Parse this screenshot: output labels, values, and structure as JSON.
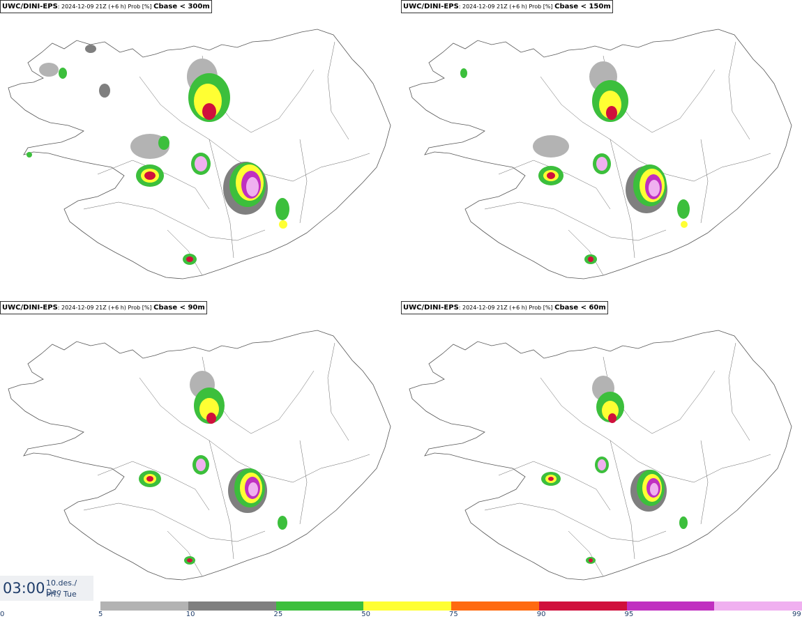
{
  "panels": [
    {
      "model": "UWC/DINI-EPS",
      "info": ": 2024-12-09 21Z (+6 h) Prob [%] ",
      "param": "Cbase < 300m"
    },
    {
      "model": "UWC/DINI-EPS",
      "info": ": 2024-12-09 21Z (+6 h) Prob [%] ",
      "param": "Cbase < 150m"
    },
    {
      "model": "UWC/DINI-EPS",
      "info": ": 2024-12-09 21Z (+6 h) Prob [%] ",
      "param": "Cbase < 90m"
    },
    {
      "model": "UWC/DINI-EPS",
      "info": ": 2024-12-09 21Z (+6 h) Prob [%] ",
      "param": "Cbase < 60m"
    }
  ],
  "valid_time": {
    "time": "03:00",
    "date_line1": "10.des./ Dec",
    "date_line2": "Þri./ Tue"
  },
  "colorbar": {
    "ticks": [
      "0",
      "5",
      "10",
      "25",
      "50",
      "75",
      "90",
      "95",
      "99"
    ],
    "colors": [
      "#b3b3b3",
      "#7f7f7f",
      "#3cbf3c",
      "#ffff33",
      "#ff6a10",
      "#d0103c",
      "#c030c0",
      "#f0b0f0"
    ]
  }
}
